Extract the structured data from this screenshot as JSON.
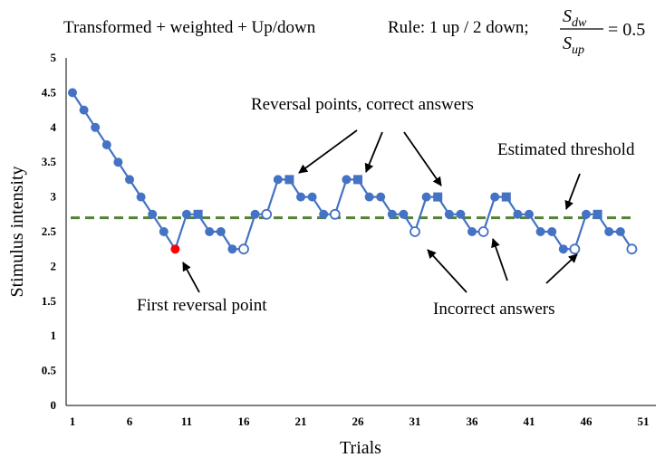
{
  "header": {
    "title": "Transformed + weighted + Up/down",
    "rule_label": "Rule: 1 up / 2 down;",
    "ratio_numerator": "S",
    "ratio_numerator_sub": "dw",
    "ratio_denominator": "S",
    "ratio_denominator_sub": "up",
    "ratio_value": "= 0.5"
  },
  "annotations": {
    "reversal_correct": "Reversal points, correct answers",
    "estimated_threshold": "Estimated threshold",
    "first_reversal": "First reversal point",
    "incorrect": "Incorrect answers"
  },
  "colors": {
    "series": "#4472C4",
    "first_reversal": "#FF0000",
    "threshold": "#548235",
    "axis": "#000000"
  },
  "chart_data": {
    "type": "line",
    "xlabel": "Trials",
    "ylabel": "Stimulus intensity",
    "xlim": [
      1,
      51
    ],
    "ylim": [
      0,
      5
    ],
    "xticks": [
      1,
      6,
      11,
      16,
      21,
      26,
      31,
      36,
      41,
      46,
      51
    ],
    "yticks": [
      0,
      0.5,
      1,
      1.5,
      2,
      2.5,
      3,
      3.5,
      4,
      4.5,
      5
    ],
    "grid": false,
    "x": [
      1,
      2,
      3,
      4,
      5,
      6,
      7,
      8,
      9,
      10,
      11,
      12,
      13,
      14,
      15,
      16,
      17,
      18,
      19,
      20,
      21,
      22,
      23,
      24,
      25,
      26,
      27,
      28,
      29,
      30,
      31,
      32,
      33,
      34,
      35,
      36,
      37,
      38,
      39,
      40,
      41,
      42,
      43,
      44,
      45,
      46,
      47,
      48,
      49,
      50
    ],
    "y": [
      4.5,
      4.25,
      4.0,
      3.75,
      3.5,
      3.25,
      3.0,
      2.75,
      2.5,
      2.25,
      2.75,
      2.75,
      2.5,
      2.5,
      2.25,
      2.25,
      2.75,
      2.75,
      3.25,
      3.25,
      3.0,
      3.0,
      2.75,
      2.75,
      3.25,
      3.25,
      3.0,
      3.0,
      2.75,
      2.75,
      2.5,
      3.0,
      3.0,
      2.75,
      2.75,
      2.5,
      2.5,
      3.0,
      3.0,
      2.75,
      2.75,
      2.5,
      2.5,
      2.25,
      2.25,
      2.75,
      2.75,
      2.5,
      2.5,
      2.25
    ],
    "markers": [
      "c",
      "c",
      "c",
      "c",
      "c",
      "c",
      "c",
      "c",
      "c",
      "r",
      "c",
      "s",
      "c",
      "c",
      "c",
      "o",
      "c",
      "o",
      "c",
      "s",
      "c",
      "c",
      "c",
      "o",
      "c",
      "s",
      "c",
      "c",
      "c",
      "c",
      "o",
      "c",
      "s",
      "c",
      "c",
      "c",
      "o",
      "c",
      "s",
      "c",
      "c",
      "c",
      "c",
      "c",
      "o",
      "c",
      "s",
      "c",
      "c",
      "o"
    ],
    "threshold": 2.7
  }
}
